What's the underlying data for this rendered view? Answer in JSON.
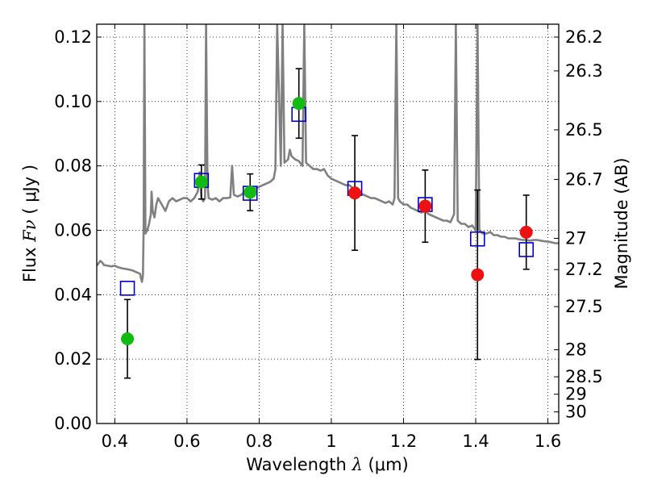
{
  "chart_data": {
    "type": "scatter",
    "xlabel": {
      "prefix": "Wavelength",
      "symbol": "λ",
      "unit": "(μm)"
    },
    "ylabel": {
      "prefix": "Flux",
      "symbol": "Fν",
      "unit": "( μJy )"
    },
    "y2label": "Magnitude (AB)",
    "xlim": [
      0.35,
      1.63
    ],
    "ylim": [
      0.0,
      0.124
    ],
    "grid": true,
    "x_ticks": [
      {
        "value": 0.4,
        "label": "0.4"
      },
      {
        "value": 0.6,
        "label": "0.6"
      },
      {
        "value": 0.8,
        "label": "0.8"
      },
      {
        "value": 1.0,
        "label": "1"
      },
      {
        "value": 1.2,
        "label": "1.2"
      },
      {
        "value": 1.4,
        "label": "1.4"
      },
      {
        "value": 1.6,
        "label": "1.6"
      }
    ],
    "y_ticks": [
      {
        "value": 0.0,
        "label": "0.00"
      },
      {
        "value": 0.02,
        "label": "0.02"
      },
      {
        "value": 0.04,
        "label": "0.04"
      },
      {
        "value": 0.06,
        "label": "0.06"
      },
      {
        "value": 0.08,
        "label": "0.08"
      },
      {
        "value": 0.1,
        "label": "0.10"
      },
      {
        "value": 0.12,
        "label": "0.12"
      }
    ],
    "y2_ticks": [
      {
        "flux": 0.12,
        "label": "26.2"
      },
      {
        "flux": 0.1095,
        "label": "26.3"
      },
      {
        "flux": 0.0912,
        "label": "26.5"
      },
      {
        "flux": 0.0758,
        "label": "26.7"
      },
      {
        "flux": 0.0575,
        "label": "27"
      },
      {
        "flux": 0.0478,
        "label": "27.2"
      },
      {
        "flux": 0.0363,
        "label": "27.5"
      },
      {
        "flux": 0.0229,
        "label": "28"
      },
      {
        "flux": 0.0145,
        "label": "28.5"
      },
      {
        "flux": 0.0091,
        "label": "29"
      },
      {
        "flux": 0.0036,
        "label": "30"
      }
    ],
    "model_spectrum": {
      "color": "#808080",
      "points": [
        [
          0.35,
          0.049
        ],
        [
          0.36,
          0.0505
        ],
        [
          0.365,
          0.05
        ],
        [
          0.37,
          0.0492
        ],
        [
          0.38,
          0.049
        ],
        [
          0.39,
          0.0488
        ],
        [
          0.4,
          0.049
        ],
        [
          0.41,
          0.0485
        ],
        [
          0.42,
          0.0482
        ],
        [
          0.43,
          0.048
        ],
        [
          0.44,
          0.0478
        ],
        [
          0.45,
          0.0475
        ],
        [
          0.46,
          0.047
        ],
        [
          0.47,
          0.0465
        ],
        [
          0.475,
          0.044
        ],
        [
          0.478,
          0.046
        ],
        [
          0.48,
          0.062
        ],
        [
          0.482,
          0.124
        ],
        [
          0.485,
          0.059
        ],
        [
          0.49,
          0.06
        ],
        [
          0.495,
          0.062
        ],
        [
          0.5,
          0.065
        ],
        [
          0.502,
          0.072
        ],
        [
          0.505,
          0.066
        ],
        [
          0.51,
          0.064
        ],
        [
          0.515,
          0.068
        ],
        [
          0.52,
          0.07
        ],
        [
          0.53,
          0.068
        ],
        [
          0.54,
          0.066
        ],
        [
          0.55,
          0.069
        ],
        [
          0.56,
          0.07
        ],
        [
          0.57,
          0.069
        ],
        [
          0.58,
          0.0695
        ],
        [
          0.59,
          0.07
        ],
        [
          0.6,
          0.07
        ],
        [
          0.61,
          0.069
        ],
        [
          0.62,
          0.07
        ],
        [
          0.63,
          0.072
        ],
        [
          0.635,
          0.078
        ],
        [
          0.64,
          0.07
        ],
        [
          0.645,
          0.069
        ],
        [
          0.65,
          0.07
        ],
        [
          0.653,
          0.124
        ],
        [
          0.657,
          0.074
        ],
        [
          0.66,
          0.07
        ],
        [
          0.67,
          0.0695
        ],
        [
          0.68,
          0.07
        ],
        [
          0.69,
          0.069
        ],
        [
          0.7,
          0.07
        ],
        [
          0.71,
          0.07
        ],
        [
          0.72,
          0.0702
        ],
        [
          0.725,
          0.08
        ],
        [
          0.73,
          0.071
        ],
        [
          0.74,
          0.0705
        ],
        [
          0.75,
          0.071
        ],
        [
          0.76,
          0.072
        ],
        [
          0.77,
          0.0715
        ],
        [
          0.78,
          0.072
        ],
        [
          0.79,
          0.073
        ],
        [
          0.8,
          0.0735
        ],
        [
          0.81,
          0.074
        ],
        [
          0.82,
          0.0745
        ],
        [
          0.83,
          0.075
        ],
        [
          0.84,
          0.076
        ],
        [
          0.845,
          0.079
        ],
        [
          0.85,
          0.124
        ],
        [
          0.86,
          0.08
        ],
        [
          0.865,
          0.124
        ],
        [
          0.87,
          0.081
        ],
        [
          0.88,
          0.082
        ],
        [
          0.885,
          0.085
        ],
        [
          0.89,
          0.083
        ],
        [
          0.9,
          0.082
        ],
        [
          0.91,
          0.0815
        ],
        [
          0.92,
          0.08
        ],
        [
          0.925,
          0.124
        ],
        [
          0.93,
          0.081
        ],
        [
          0.94,
          0.08
        ],
        [
          0.95,
          0.079
        ],
        [
          0.96,
          0.079
        ],
        [
          0.97,
          0.0785
        ],
        [
          0.98,
          0.079
        ],
        [
          0.99,
          0.077
        ],
        [
          1.0,
          0.076
        ],
        [
          1.01,
          0.0755
        ],
        [
          1.02,
          0.075
        ],
        [
          1.03,
          0.0745
        ],
        [
          1.04,
          0.074
        ],
        [
          1.05,
          0.074
        ],
        [
          1.06,
          0.073
        ],
        [
          1.07,
          0.072
        ],
        [
          1.08,
          0.0715
        ],
        [
          1.09,
          0.071
        ],
        [
          1.1,
          0.0705
        ],
        [
          1.11,
          0.07
        ],
        [
          1.12,
          0.07
        ],
        [
          1.13,
          0.0695
        ],
        [
          1.14,
          0.069
        ],
        [
          1.15,
          0.0685
        ],
        [
          1.16,
          0.069
        ],
        [
          1.17,
          0.068
        ],
        [
          1.175,
          0.07
        ],
        [
          1.18,
          0.124
        ],
        [
          1.185,
          0.07
        ],
        [
          1.19,
          0.069
        ],
        [
          1.2,
          0.068
        ],
        [
          1.21,
          0.068
        ],
        [
          1.22,
          0.067
        ],
        [
          1.23,
          0.0665
        ],
        [
          1.24,
          0.066
        ],
        [
          1.25,
          0.0655
        ],
        [
          1.26,
          0.066
        ],
        [
          1.27,
          0.065
        ],
        [
          1.28,
          0.0645
        ],
        [
          1.29,
          0.064
        ],
        [
          1.3,
          0.0635
        ],
        [
          1.31,
          0.063
        ],
        [
          1.32,
          0.063
        ],
        [
          1.33,
          0.0625
        ],
        [
          1.34,
          0.065
        ],
        [
          1.345,
          0.124
        ],
        [
          1.35,
          0.063
        ],
        [
          1.36,
          0.062
        ],
        [
          1.37,
          0.062
        ],
        [
          1.38,
          0.061
        ],
        [
          1.39,
          0.0615
        ],
        [
          1.4,
          0.06
        ],
        [
          1.405,
          0.124
        ],
        [
          1.41,
          0.06
        ],
        [
          1.42,
          0.059
        ],
        [
          1.43,
          0.059
        ],
        [
          1.44,
          0.0595
        ],
        [
          1.45,
          0.0585
        ],
        [
          1.46,
          0.0585
        ],
        [
          1.47,
          0.058
        ],
        [
          1.48,
          0.058
        ],
        [
          1.49,
          0.0575
        ],
        [
          1.5,
          0.0575
        ],
        [
          1.51,
          0.0575
        ],
        [
          1.52,
          0.0572
        ],
        [
          1.53,
          0.057
        ],
        [
          1.54,
          0.057
        ],
        [
          1.55,
          0.0568
        ],
        [
          1.56,
          0.057
        ],
        [
          1.57,
          0.057
        ],
        [
          1.58,
          0.0568
        ],
        [
          1.59,
          0.0566
        ],
        [
          1.6,
          0.0565
        ],
        [
          1.61,
          0.0563
        ],
        [
          1.62,
          0.056
        ],
        [
          1.63,
          0.056
        ]
      ]
    },
    "model_fluxes": {
      "color": "#0000cc",
      "points": [
        {
          "x": 0.435,
          "y": 0.042
        },
        {
          "x": 0.64,
          "y": 0.0755
        },
        {
          "x": 0.775,
          "y": 0.0715
        },
        {
          "x": 0.91,
          "y": 0.096
        },
        {
          "x": 1.065,
          "y": 0.073
        },
        {
          "x": 1.26,
          "y": 0.068
        },
        {
          "x": 1.405,
          "y": 0.0573
        },
        {
          "x": 1.54,
          "y": 0.054
        }
      ]
    },
    "observed": {
      "error_color": "#000000",
      "points": [
        {
          "x": 0.435,
          "y": 0.0263,
          "err": 0.0122,
          "color": "#11bb11"
        },
        {
          "x": 0.64,
          "y": 0.075,
          "err": 0.0053,
          "color": "#11bb11"
        },
        {
          "x": 0.775,
          "y": 0.0718,
          "err": 0.0057,
          "color": "#11bb11"
        },
        {
          "x": 0.91,
          "y": 0.0994,
          "err": 0.0108,
          "color": "#11bb11"
        },
        {
          "x": 1.065,
          "y": 0.0716,
          "err": 0.0178,
          "color": "#ee1111"
        },
        {
          "x": 1.26,
          "y": 0.0675,
          "err": 0.0112,
          "color": "#ee1111"
        },
        {
          "x": 1.405,
          "y": 0.0462,
          "err": 0.0263,
          "color": "#ee1111"
        },
        {
          "x": 1.54,
          "y": 0.0594,
          "err": 0.0115,
          "color": "#ee1111"
        }
      ]
    }
  }
}
